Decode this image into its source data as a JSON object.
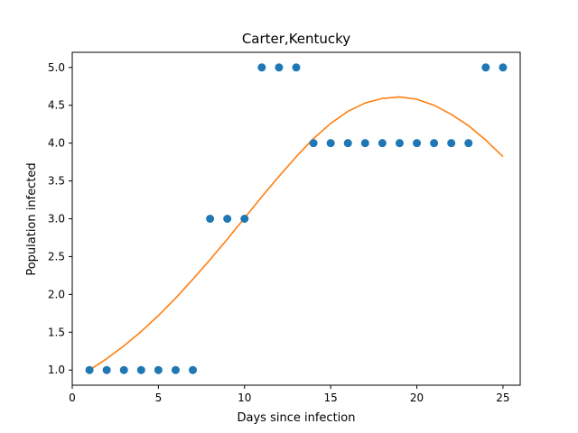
{
  "chart_data": {
    "type": "scatter",
    "title": "Carter,Kentucky",
    "xlabel": "Days since infection",
    "ylabel": "Population infected",
    "xlim": [
      0,
      26
    ],
    "ylim": [
      0.8,
      5.2
    ],
    "x_ticks": [
      0,
      5,
      10,
      15,
      20,
      25
    ],
    "y_ticks": [
      1.0,
      1.5,
      2.0,
      2.5,
      3.0,
      3.5,
      4.0,
      4.5,
      5.0
    ],
    "x_tick_labels": [
      "0",
      "5",
      "10",
      "15",
      "20",
      "25"
    ],
    "y_tick_labels": [
      "1.0",
      "1.5",
      "2.0",
      "2.5",
      "3.0",
      "3.5",
      "4.0",
      "4.5",
      "5.0"
    ],
    "grid": false,
    "series": [
      {
        "kind": "scatter",
        "color": "#1f77b4",
        "x": [
          1,
          2,
          3,
          4,
          5,
          6,
          7,
          8,
          9,
          10,
          11,
          12,
          13,
          14,
          15,
          16,
          17,
          18,
          19,
          20,
          21,
          22,
          23,
          24,
          25
        ],
        "y": [
          1,
          1,
          1,
          1,
          1,
          1,
          1,
          3,
          3,
          3,
          5,
          5,
          5,
          4,
          4,
          4,
          4,
          4,
          4,
          4,
          4,
          4,
          4,
          5,
          5
        ]
      },
      {
        "kind": "line",
        "color": "#ff7f0e",
        "x": [
          1,
          2,
          3,
          4,
          5,
          6,
          7,
          8,
          9,
          10,
          11,
          12,
          13,
          14,
          15,
          16,
          17,
          18,
          19,
          20,
          21,
          22,
          23,
          24,
          25
        ],
        "y": [
          1.0,
          1.15,
          1.32,
          1.51,
          1.72,
          1.95,
          2.2,
          2.46,
          2.73,
          3.01,
          3.29,
          3.56,
          3.82,
          4.06,
          4.26,
          4.42,
          4.53,
          4.59,
          4.61,
          4.58,
          4.5,
          4.38,
          4.23,
          4.04,
          3.82
        ]
      }
    ]
  }
}
